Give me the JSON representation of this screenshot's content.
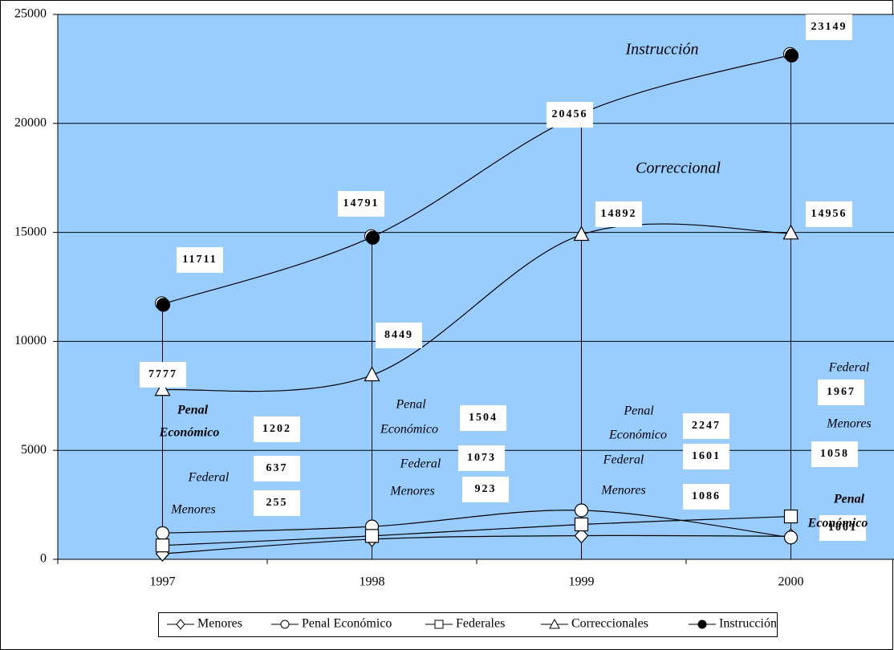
{
  "chart_data": {
    "type": "line",
    "categories": [
      "1997",
      "1998",
      "1999",
      "2000"
    ],
    "series": [
      {
        "name": "Menores",
        "color": "#000000",
        "marker": "diamond",
        "values": [
          255,
          923,
          1086,
          1058
        ]
      },
      {
        "name": "Penal Económico",
        "color": "#000000",
        "marker": "circle",
        "values": [
          1202,
          1504,
          2247,
          1001
        ]
      },
      {
        "name": "Federales",
        "color": "#000000",
        "marker": "square",
        "values": [
          637,
          1073,
          1601,
          1967
        ]
      },
      {
        "name": "Correccionales",
        "color": "#000000",
        "marker": "triangle",
        "values": [
          7777,
          8449,
          14892,
          14956
        ]
      },
      {
        "name": "Instrucción",
        "color": "#000000",
        "marker": "filled-circle",
        "values": [
          11711,
          14791,
          20456,
          23149
        ]
      }
    ],
    "ylim": [
      0,
      25000
    ],
    "yticks": [
      0,
      5000,
      10000,
      15000,
      20000,
      25000
    ],
    "grid": true,
    "background": "#99ccff",
    "legend": "bottom",
    "annotations": [
      "Instrucción",
      "Correccional",
      "Penal",
      "Económico",
      "Federal",
      "Menores",
      "Penal",
      "Económico",
      "Federal",
      "Menores",
      "Penal",
      "Económico",
      "Federal",
      "Menores",
      "Federal",
      "Menores",
      "Penal",
      "Económico"
    ]
  }
}
